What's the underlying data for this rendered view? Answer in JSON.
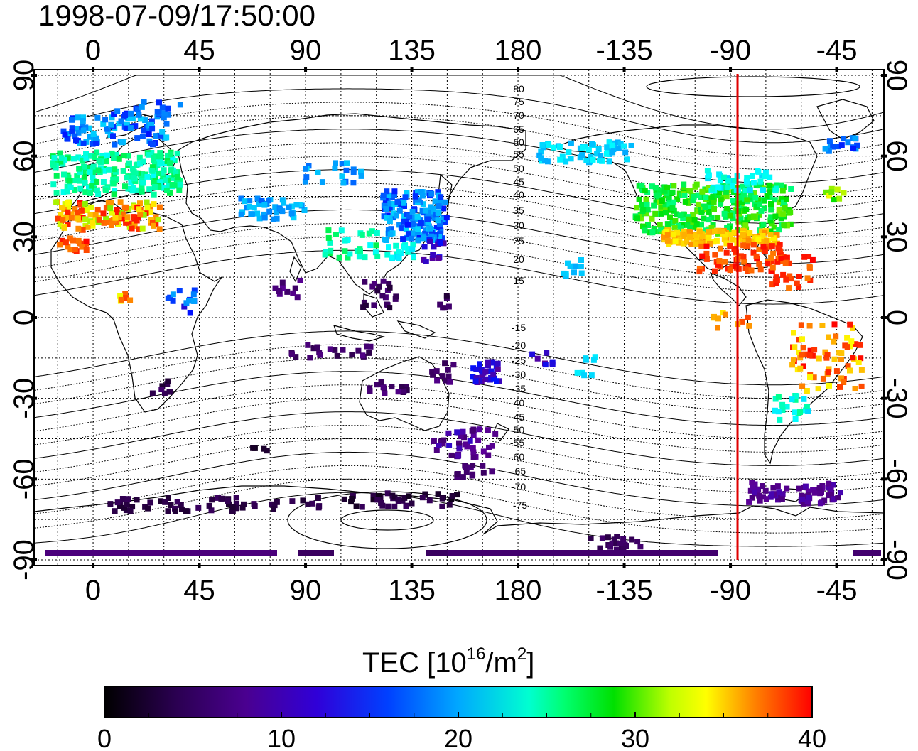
{
  "timestamp": "1998-07-09/17:50:00",
  "map": {
    "x_ticks_top": [
      "0",
      "45",
      "90",
      "135",
      "180",
      "-135",
      "-90",
      "-45"
    ],
    "x_ticks_bottom": [
      "0",
      "45",
      "90",
      "135",
      "180",
      "-135",
      "-90",
      "-45"
    ],
    "y_ticks_left": [
      "90",
      "60",
      "30",
      "0",
      "-30",
      "-60",
      "-90"
    ],
    "y_ticks_right": [
      "90",
      "60",
      "30",
      "0",
      "-30",
      "-60",
      "-90"
    ],
    "contour_labels_north": [
      "80",
      "75",
      "70",
      "65",
      "60",
      "55",
      "50",
      "45",
      "40",
      "35",
      "30",
      "25",
      "20",
      "15"
    ],
    "contour_labels_south": [
      "-15",
      "-20",
      "-25",
      "-30",
      "-35",
      "-40",
      "-45",
      "-50",
      "-55",
      "-60",
      "-65",
      "-70",
      "-75"
    ],
    "marker_line_color": "#e00000",
    "marker_longitude": -87
  },
  "colorbar": {
    "title": "TEC  [10",
    "title_exp": "16",
    "title_mid": "/m",
    "title_exp2": "2",
    "title_end": "]",
    "ticks": [
      "0",
      "10",
      "20",
      "30",
      "40"
    ],
    "range": [
      0,
      40
    ],
    "stops": [
      "#000000",
      "#3a0060",
      "#5b0098",
      "#0010ff",
      "#00a8ff",
      "#00ffff",
      "#00ff80",
      "#00e000",
      "#ffff00",
      "#ff8000",
      "#ff0000"
    ]
  },
  "layers": {
    "land_outline_color": "#000000",
    "grid_color": "#000000",
    "contour_color": "#000000"
  }
}
